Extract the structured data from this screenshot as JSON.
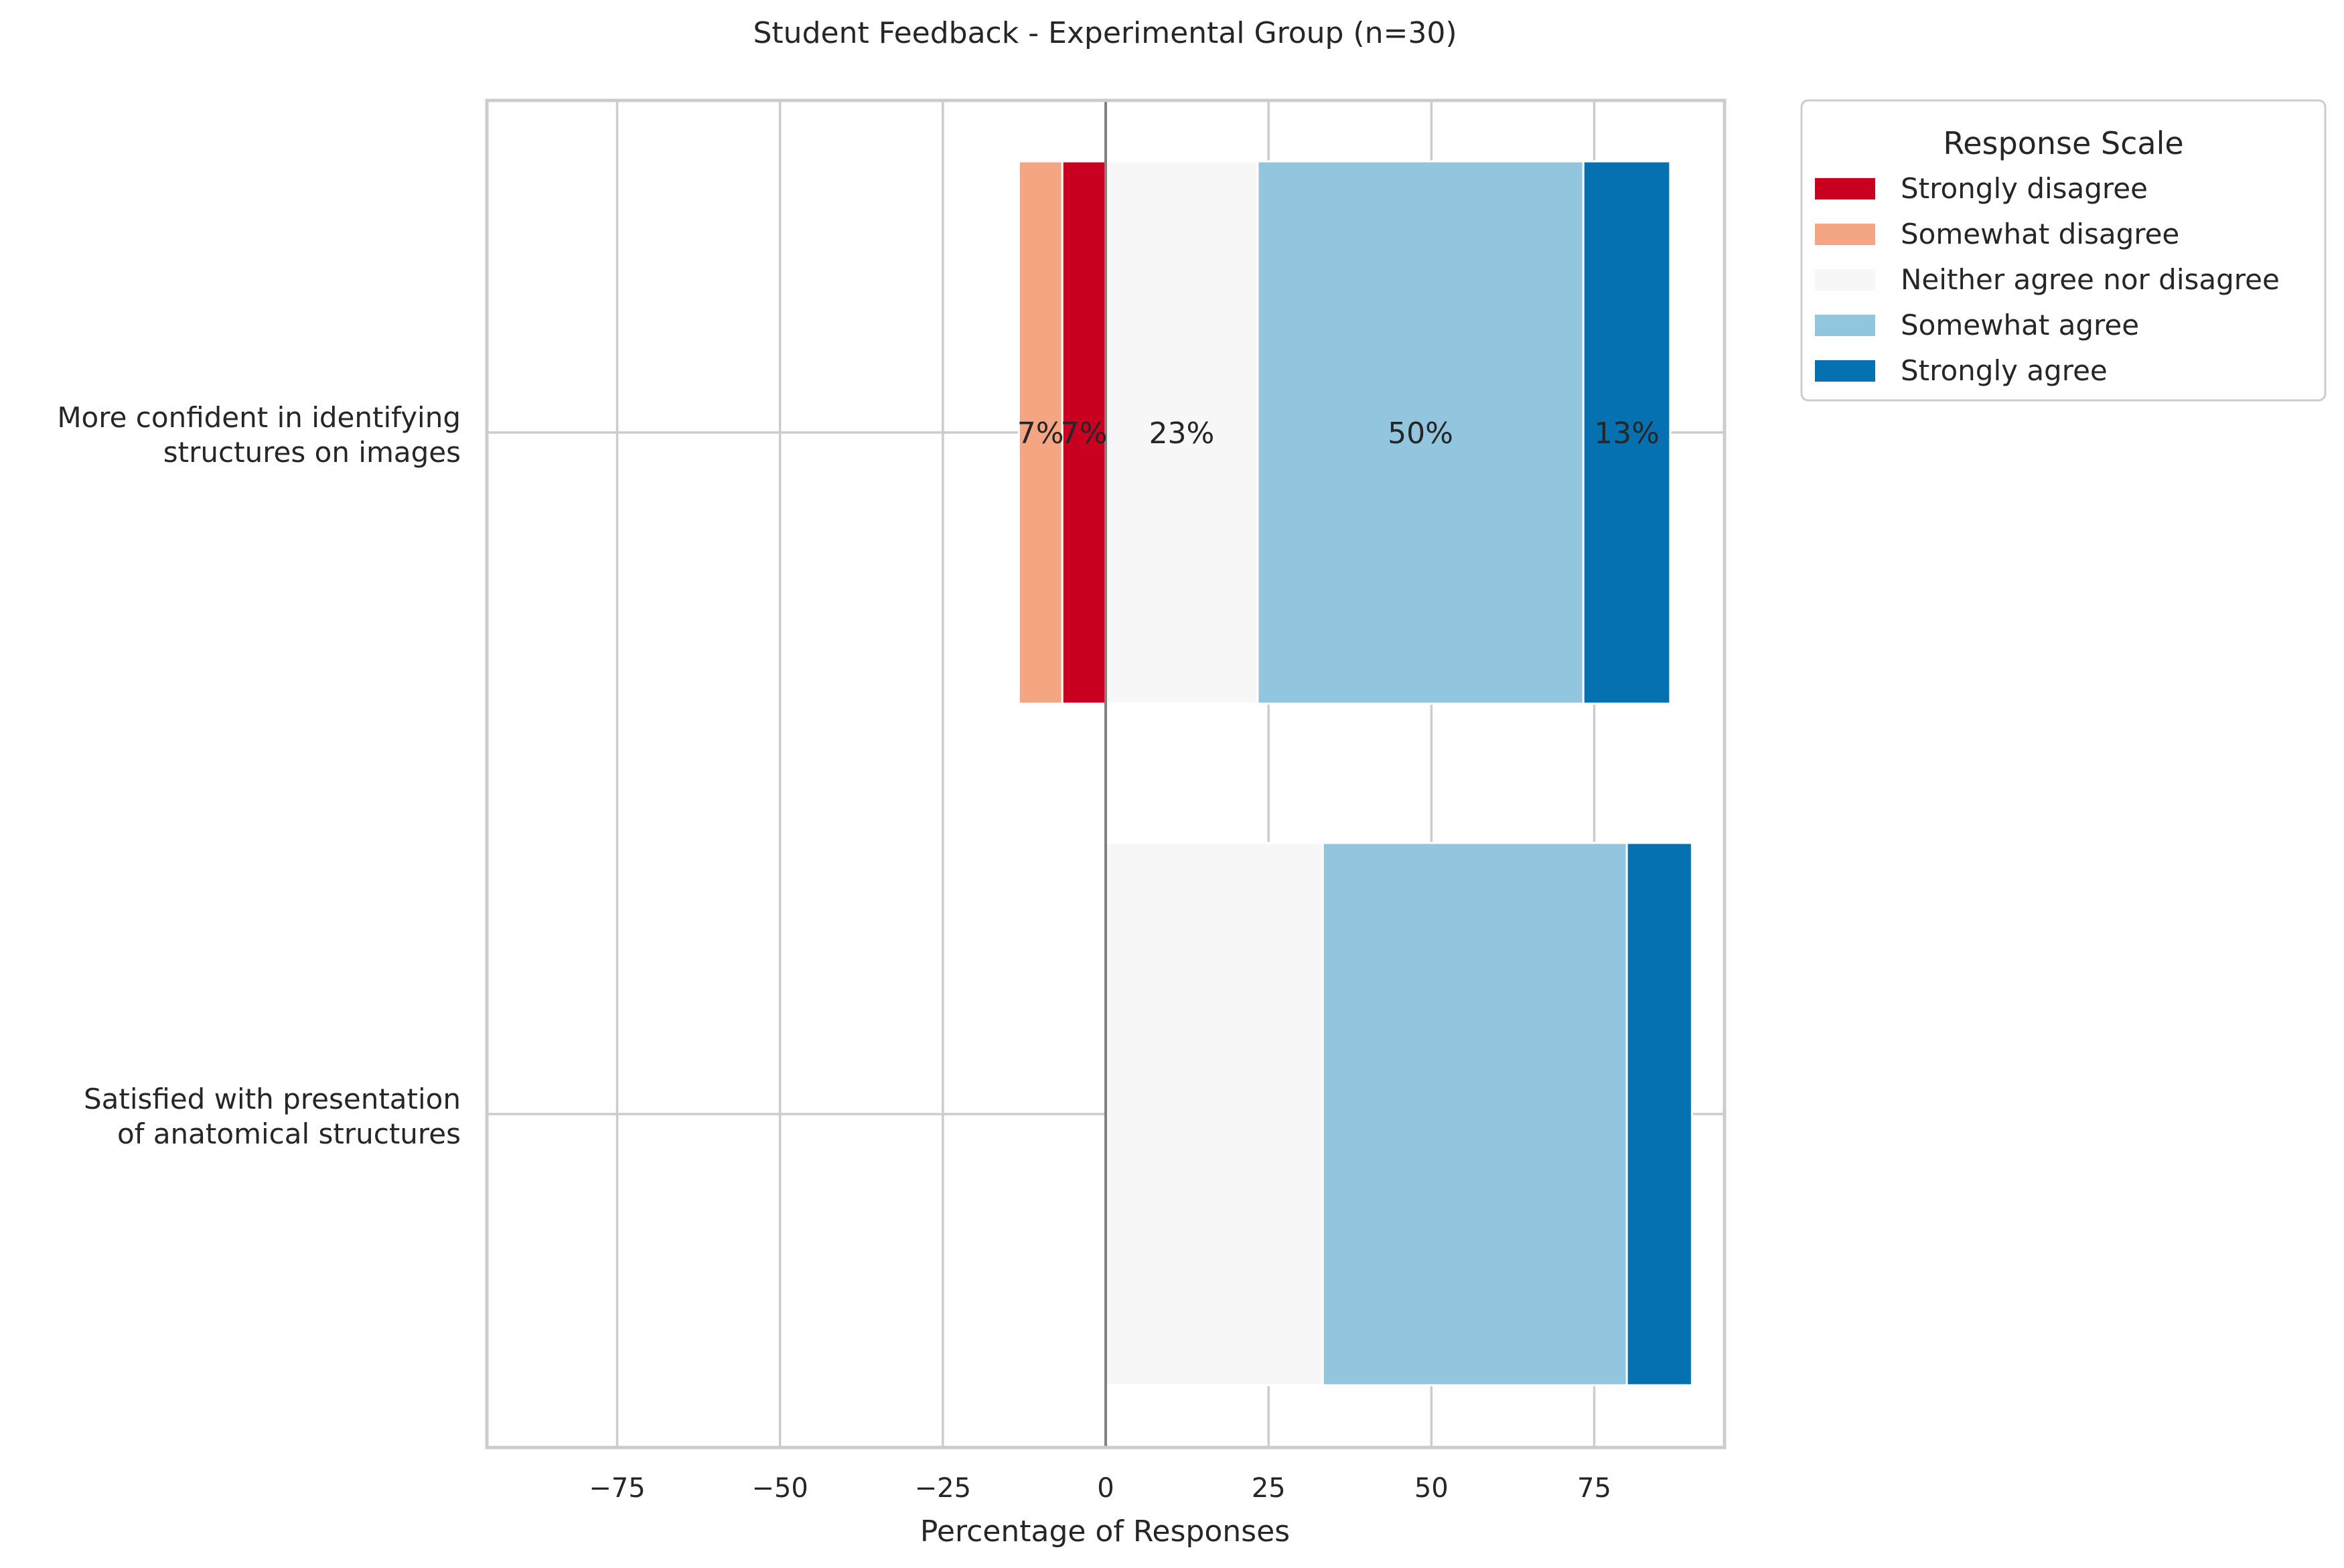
{
  "chart_data": {
    "type": "bar",
    "orientation": "horizontal",
    "stacked": "diverging",
    "title": "Student Feedback - Experimental Group (n=30)",
    "xlabel": "Percentage of Responses",
    "ylabel": "",
    "xlim": [
      -95,
      95
    ],
    "xticks": [
      -75,
      -50,
      -25,
      0,
      25,
      50,
      75
    ],
    "xtick_labels": [
      "−75",
      "−50",
      "−25",
      "0",
      "25",
      "50",
      "75"
    ],
    "grid": true,
    "legend_position": "outside-top-right",
    "legend_title": "Response Scale",
    "categories": [
      [
        "More confident in identifying",
        "structures on images"
      ],
      [
        "Satisfied with presentation",
        "of anatomical structures"
      ]
    ],
    "series": [
      {
        "name": "Strongly disagree",
        "color": "#ca0020",
        "side": "negative",
        "values": [
          6.67,
          0
        ],
        "labels": [
          "7%",
          ""
        ]
      },
      {
        "name": "Somewhat disagree",
        "color": "#f4a582",
        "side": "negative",
        "values": [
          6.67,
          0
        ],
        "labels": [
          "7%",
          ""
        ]
      },
      {
        "name": "Neither agree nor disagree",
        "color": "#f7f7f7",
        "side": "positive",
        "values": [
          23.33,
          33.33
        ],
        "labels": [
          "23%",
          ""
        ]
      },
      {
        "name": "Somewhat agree",
        "color": "#92c5de",
        "side": "positive",
        "values": [
          50,
          46.67
        ],
        "labels": [
          "50%",
          ""
        ]
      },
      {
        "name": "Strongly agree",
        "color": "#0571b0",
        "side": "positive",
        "values": [
          13.33,
          10
        ],
        "labels": [
          "13%",
          ""
        ]
      }
    ]
  }
}
